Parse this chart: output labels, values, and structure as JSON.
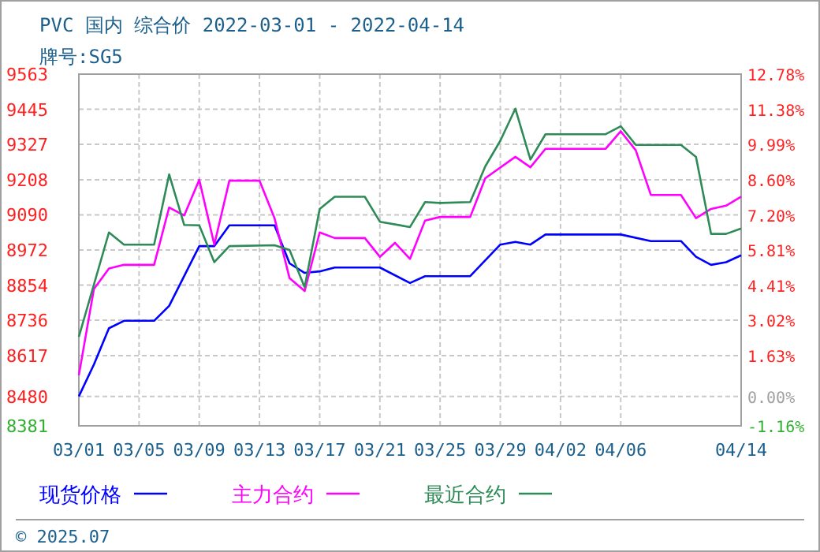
{
  "chart_data": {
    "type": "line",
    "title": "PVC 国内 综合价 2022-03-01 - 2022-04-14",
    "subtitle": "牌号:SG5",
    "xlim": [
      "2022-03-01",
      "2022-04-14"
    ],
    "xticks": [
      {
        "value": "2022-03-01",
        "label": "03/01"
      },
      {
        "value": "2022-03-05",
        "label": "03/05"
      },
      {
        "value": "2022-03-09",
        "label": "03/09"
      },
      {
        "value": "2022-03-13",
        "label": "03/13"
      },
      {
        "value": "2022-03-17",
        "label": "03/17"
      },
      {
        "value": "2022-03-21",
        "label": "03/21"
      },
      {
        "value": "2022-03-25",
        "label": "03/25"
      },
      {
        "value": "2022-03-29",
        "label": "03/29"
      },
      {
        "value": "2022-04-02",
        "label": "04/02"
      },
      {
        "value": "2022-04-06",
        "label": "04/06"
      },
      {
        "value": "2022-04-14",
        "label": "04/14"
      }
    ],
    "ylim": [
      8381,
      9563
    ],
    "yticks": [
      8381,
      8480,
      8617,
      8736,
      8854,
      8972,
      9090,
      9208,
      9327,
      9445,
      9563
    ],
    "y2lim": [
      -1.16,
      12.78
    ],
    "y2ticks": [
      {
        "value": -1.16,
        "label": "-1.16%"
      },
      {
        "value": 0,
        "label": "0.00%"
      },
      {
        "value": 1.63,
        "label": "1.63%"
      },
      {
        "value": 3.02,
        "label": "3.02%"
      },
      {
        "value": 4.41,
        "label": "4.41%"
      },
      {
        "value": 5.81,
        "label": "5.81%"
      },
      {
        "value": 7.2,
        "label": "7.20%"
      },
      {
        "value": 8.6,
        "label": "8.60%"
      },
      {
        "value": 9.99,
        "label": "9.99%"
      },
      {
        "value": 11.38,
        "label": "11.38%"
      },
      {
        "value": 12.78,
        "label": "12.78%"
      }
    ],
    "grid": true,
    "legend": "bottom",
    "line_style": "solid",
    "annotations": [
      "© 2025.07"
    ],
    "series": [
      {
        "name": "现货价格",
        "color": "#0000ff",
        "x": [
          "2022-03-01",
          "2022-03-02",
          "2022-03-03",
          "2022-03-04",
          "2022-03-06",
          "2022-03-07",
          "2022-03-09",
          "2022-03-10",
          "2022-03-11",
          "2022-03-14",
          "2022-03-15",
          "2022-03-16",
          "2022-03-17",
          "2022-03-18",
          "2022-03-21",
          "2022-03-23",
          "2022-03-24",
          "2022-03-27",
          "2022-03-29",
          "2022-03-30",
          "2022-03-31",
          "2022-04-01",
          "2022-04-06",
          "2022-04-08",
          "2022-04-10",
          "2022-04-11",
          "2022-04-12",
          "2022-04-13",
          "2022-04-14"
        ],
        "values": [
          8480,
          8587,
          8709,
          8734,
          8734,
          8784,
          8985,
          8985,
          9055,
          9055,
          8927,
          8895,
          8900,
          8913,
          8913,
          8861,
          8884,
          8884,
          8990,
          8999,
          8990,
          9024,
          9024,
          9002,
          9002,
          8949,
          8922,
          8931,
          8954
        ]
      },
      {
        "name": "主力合约",
        "color": "#ff00ff",
        "x": [
          "2022-03-01",
          "2022-03-02",
          "2022-03-03",
          "2022-03-04",
          "2022-03-06",
          "2022-03-07",
          "2022-03-08",
          "2022-03-09",
          "2022-03-10",
          "2022-03-11",
          "2022-03-13",
          "2022-03-14",
          "2022-03-15",
          "2022-03-16",
          "2022-03-17",
          "2022-03-18",
          "2022-03-20",
          "2022-03-21",
          "2022-03-22",
          "2022-03-23",
          "2022-03-24",
          "2022-03-25",
          "2022-03-27",
          "2022-03-28",
          "2022-03-30",
          "2022-03-31",
          "2022-04-01",
          "2022-04-05",
          "2022-04-06",
          "2022-04-07",
          "2022-04-08",
          "2022-04-10",
          "2022-04-11",
          "2022-04-12",
          "2022-04-13",
          "2022-04-14"
        ],
        "values": [
          8551,
          8841,
          8910,
          8922,
          8922,
          9115,
          9088,
          9208,
          8990,
          9205,
          9205,
          9079,
          8877,
          8834,
          9031,
          9012,
          9012,
          8949,
          8996,
          8942,
          9071,
          9083,
          9083,
          9213,
          9285,
          9250,
          9312,
          9312,
          9371,
          9307,
          9157,
          9157,
          9079,
          9110,
          9121,
          9151
        ]
      },
      {
        "name": "最近合约",
        "color": "#2e8b57",
        "x": [
          "2022-03-01",
          "2022-03-03",
          "2022-03-04",
          "2022-03-06",
          "2022-03-07",
          "2022-03-08",
          "2022-03-09",
          "2022-03-10",
          "2022-03-11",
          "2022-03-14",
          "2022-03-15",
          "2022-03-16",
          "2022-03-17",
          "2022-03-18",
          "2022-03-20",
          "2022-03-21",
          "2022-03-23",
          "2022-03-24",
          "2022-03-25",
          "2022-03-27",
          "2022-03-28",
          "2022-03-29",
          "2022-03-30",
          "2022-03-31",
          "2022-04-01",
          "2022-04-05",
          "2022-04-06",
          "2022-04-07",
          "2022-04-10",
          "2022-04-11",
          "2022-04-12",
          "2022-04-13",
          "2022-04-14"
        ],
        "values": [
          8680,
          9031,
          8990,
          8990,
          9226,
          9056,
          9055,
          8931,
          8985,
          8988,
          8972,
          8847,
          9110,
          9151,
          9151,
          9067,
          9049,
          9133,
          9130,
          9133,
          9253,
          9339,
          9447,
          9276,
          9361,
          9361,
          9388,
          9325,
          9325,
          9285,
          9026,
          9026,
          9044
        ]
      }
    ]
  }
}
